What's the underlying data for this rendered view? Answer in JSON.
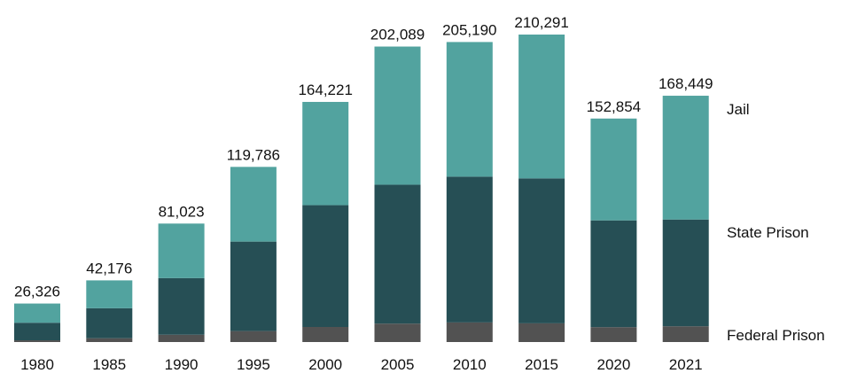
{
  "chart_data": {
    "type": "bar",
    "stacked": true,
    "title": "",
    "xlabel": "",
    "ylabel": "",
    "ylim": [
      0,
      210291
    ],
    "grid": false,
    "legend_placement": "right (inline labels)",
    "categories": [
      "1980",
      "1985",
      "1990",
      "1995",
      "2000",
      "2005",
      "2010",
      "2015",
      "2020",
      "2021"
    ],
    "totals": [
      26326,
      42176,
      81023,
      119786,
      164221,
      202089,
      205190,
      210291,
      152854,
      168449
    ],
    "total_labels": [
      "26,326",
      "42,176",
      "81,023",
      "119,786",
      "164,221",
      "202,089",
      "205,190",
      "210,291",
      "152,854",
      "168,449"
    ],
    "series": [
      {
        "name": "Federal Prison",
        "color": "#525252",
        "values": [
          1200,
          2600,
          5000,
          7500,
          10300,
          12600,
          13400,
          12800,
          10200,
          10800
        ]
      },
      {
        "name": "State Prison",
        "color": "#264f55",
        "values": [
          12000,
          20500,
          38700,
          61200,
          83300,
          95000,
          99700,
          99100,
          73000,
          73000
        ]
      },
      {
        "name": "Jail",
        "color": "#52a39f",
        "values": [
          13126,
          19076,
          37323,
          51086,
          70621,
          94489,
          92090,
          98391,
          69654,
          84649
        ]
      }
    ]
  }
}
